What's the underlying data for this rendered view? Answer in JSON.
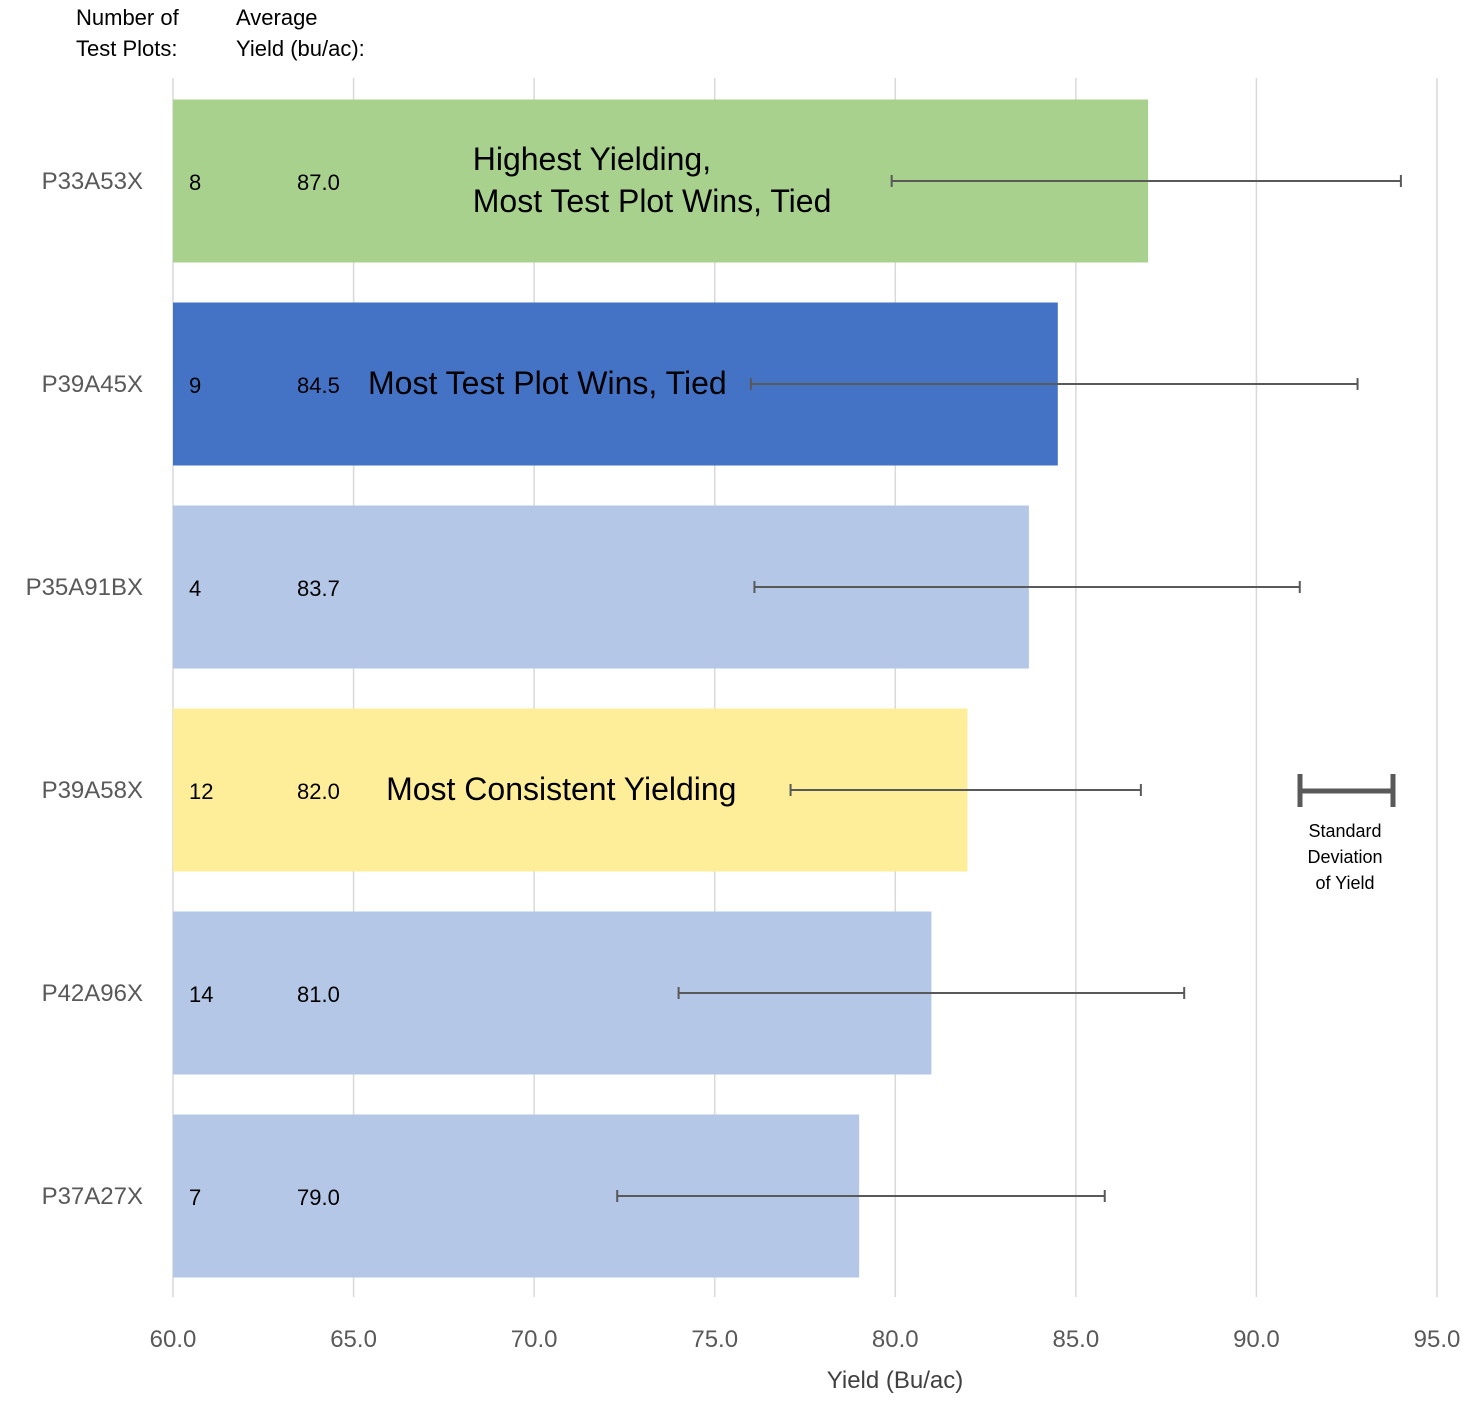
{
  "header": {
    "plots_label": "Number of\nTest Plots:",
    "yield_label": "Average\nYield (bu/ac):"
  },
  "chart_data": {
    "type": "bar",
    "orientation": "horizontal",
    "xlabel": "Yield (Bu/ac)",
    "xlim": [
      60.0,
      95.0
    ],
    "x_ticks": [
      "60.0",
      "65.0",
      "70.0",
      "75.0",
      "80.0",
      "85.0",
      "90.0",
      "95.0"
    ],
    "grid": "vertical",
    "categories": [
      "P33A53X",
      "P39A45X",
      "P35A91BX",
      "P39A58X",
      "P42A96X",
      "P37A27X"
    ],
    "values": [
      87.0,
      84.5,
      83.7,
      82.0,
      81.0,
      79.0
    ],
    "value_labels": [
      "87.0",
      "84.5",
      "83.7",
      "82.0",
      "81.0",
      "79.0"
    ],
    "test_plots": [
      "8",
      "9",
      "4",
      "12",
      "14",
      "7"
    ],
    "error_bars": [
      [
        79.9,
        94.0
      ],
      [
        76.0,
        92.8
      ],
      [
        76.1,
        91.2
      ],
      [
        77.1,
        86.8
      ],
      [
        74.0,
        88.0
      ],
      [
        72.3,
        85.8
      ]
    ],
    "bar_colors": [
      "#a9d18e",
      "#4472c4",
      "#b4c7e7",
      "#ffee99",
      "#b4c7e7",
      "#b4c7e7"
    ],
    "annotations": [
      {
        "bar": 0,
        "text": "Highest Yielding,\nMost Test Plot Wins, Tied",
        "at_value": 68.3
      },
      {
        "bar": 1,
        "text": "Most Test Plot Wins, Tied",
        "at_value": 65.4
      },
      {
        "bar": 3,
        "text": "Most Consistent Yielding",
        "at_value": 65.9
      }
    ],
    "legend": {
      "label": "Standard\nDeviation\nof Yield",
      "position": "right"
    },
    "colors": {
      "grid": "#d9d9d9",
      "error_bar": "#595959",
      "tick_text": "#595959",
      "axis_title": "#404040"
    }
  }
}
